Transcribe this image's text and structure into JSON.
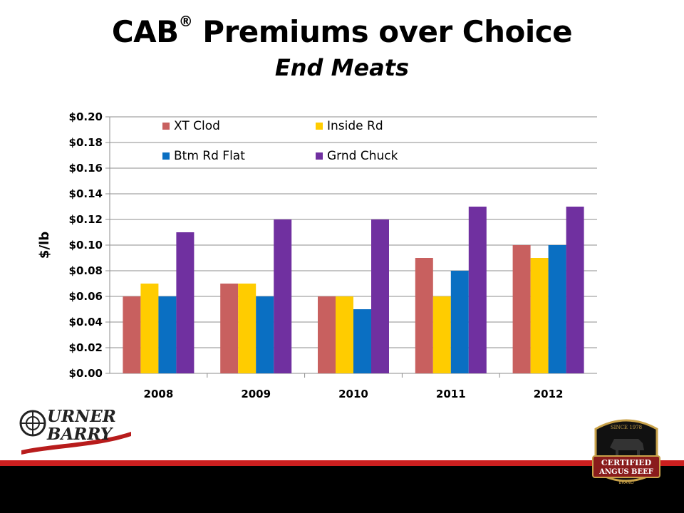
{
  "slide": {
    "title": "CAB",
    "title_mark": "®",
    "title_rest": " Premiums over Choice",
    "subtitle": "End Meats"
  },
  "logos": {
    "left_name": "Urner Barry",
    "left_lines": [
      "URNER",
      "BARRY"
    ],
    "right_name": "Certified Angus Beef Brand",
    "right_lines": [
      "SINCE 1978",
      "CERTIFIED",
      "ANGUS BEEF",
      "BRAND"
    ]
  },
  "colors": {
    "footer_red": "#cc1f1f",
    "footer_black": "#000000"
  },
  "chart_data": {
    "type": "bar",
    "categories": [
      "2008",
      "2009",
      "2010",
      "2011",
      "2012"
    ],
    "series": [
      {
        "name": "XT Clod",
        "color": "#c8605f",
        "values": [
          0.06,
          0.07,
          0.06,
          0.09,
          0.1
        ]
      },
      {
        "name": "Inside Rd",
        "color": "#ffcc00",
        "values": [
          0.07,
          0.07,
          0.06,
          0.06,
          0.09
        ]
      },
      {
        "name": "Btm Rd Flat",
        "color": "#0a6fc2",
        "values": [
          0.06,
          0.06,
          0.05,
          0.08,
          0.1
        ]
      },
      {
        "name": "Grnd Chuck",
        "color": "#7030a0",
        "values": [
          0.11,
          0.12,
          0.12,
          0.13,
          0.13
        ]
      }
    ],
    "ylabel": "$/lb",
    "xlabel": "",
    "ylim": [
      0,
      0.2
    ],
    "yticks": [
      "$0.00",
      "$0.02",
      "$0.04",
      "$0.06",
      "$0.08",
      "$0.10",
      "$0.12",
      "$0.14",
      "$0.16",
      "$0.18",
      "$0.20"
    ],
    "grid": true,
    "legend_position": "top-left, inside plot, 2 columns"
  }
}
